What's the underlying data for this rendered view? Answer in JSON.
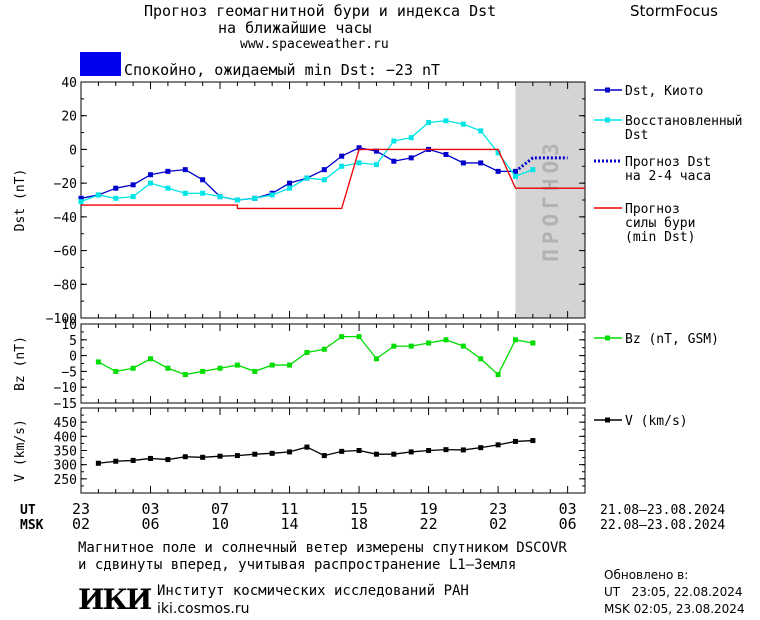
{
  "header": {
    "title_line1": "Прогноз геомагнитной бури и индекса Dst",
    "title_line2": "на ближайшие часы",
    "website": "www.spaceweather.ru",
    "brand": "StormFocus"
  },
  "status": {
    "text": "Спокойно, ожидаемый min Dst: −23 nT",
    "color": "#0000ee"
  },
  "forecast_label": "ПРОГНОЗ",
  "time_axis": {
    "ut_label": "UT",
    "msk_label": "MSK",
    "ut_ticks": [
      "23",
      "03",
      "07",
      "11",
      "15",
      "19",
      "23",
      "03"
    ],
    "msk_ticks": [
      "02",
      "06",
      "10",
      "14",
      "18",
      "22",
      "02",
      "06"
    ],
    "ut_range": "21.08–23.08.2024",
    "msk_range": "22.08–23.08.2024"
  },
  "footer": {
    "note_line1": "Магнитное поле и солнечный ветер измерены спутником DSCOVR",
    "note_line2": "и сдвинуты вперед, учитывая распространение L1–Земля",
    "institute": "Институт космических исследований РАН",
    "institute_url": "iki.cosmos.ru",
    "logo_text": "ИКИ",
    "updated_label": "Обновлено в:",
    "updated_ut": "UT   23:05, 22.08.2024",
    "updated_msk": "MSK 02:05, 23.08.2024"
  },
  "chart_data": [
    {
      "type": "line",
      "ylabel": "Dst (nT)",
      "ylim": [
        -100,
        40
      ],
      "yticks": [
        40,
        20,
        0,
        -20,
        -40,
        -60,
        -80,
        -100
      ],
      "xlim": [
        0,
        29
      ],
      "forecast_region": [
        25,
        29
      ],
      "series": [
        {
          "name": "Dst, Киото",
          "color": "#0000cc",
          "x": [
            0,
            1,
            2,
            3,
            4,
            5,
            6,
            7,
            8,
            9,
            10,
            11,
            12,
            13,
            14,
            15,
            16,
            17,
            18,
            19,
            20,
            21,
            22,
            23,
            24,
            25
          ],
          "y": [
            -29,
            -27,
            -23,
            -21,
            -15,
            -13,
            -12,
            -18,
            -28,
            -30,
            -29,
            -26,
            -20,
            -17,
            -12,
            -4,
            1,
            -1,
            -7,
            -5,
            0,
            -3,
            -8,
            -8,
            -13,
            -13
          ]
        },
        {
          "name": "Восстановленный Dst",
          "color": "#00e6e6",
          "x": [
            0,
            1,
            2,
            3,
            4,
            5,
            6,
            7,
            8,
            9,
            10,
            11,
            12,
            13,
            14,
            15,
            16,
            17,
            18,
            19,
            20,
            21,
            22,
            23,
            24,
            25,
            26
          ],
          "y": [
            -31,
            -27,
            -29,
            -28,
            -20,
            -23,
            -26,
            -26,
            -28,
            -30,
            -29,
            -27,
            -23,
            -17,
            -18,
            -10,
            -8,
            -9,
            5,
            7,
            16,
            17,
            15,
            11,
            -2,
            -16,
            -12
          ]
        },
        {
          "name": "Прогноз Dst на 2-4 часа",
          "color": "#0000cc",
          "dashed": true,
          "x": [
            25,
            26,
            27,
            28
          ],
          "y": [
            -13,
            -5,
            -5,
            -5
          ]
        },
        {
          "name": "Прогноз силы бури (min Dst)",
          "color": "#ee0000",
          "x": [
            0,
            9,
            9,
            15,
            16,
            16,
            24,
            25,
            29
          ],
          "y": [
            -33,
            -33,
            -35,
            -35,
            0,
            0,
            0,
            -23,
            -23
          ]
        }
      ]
    },
    {
      "type": "line",
      "ylabel": "Bz (nT)",
      "ylim": [
        -15,
        10
      ],
      "yticks": [
        10,
        5,
        0,
        -5,
        -10,
        -15
      ],
      "xlim": [
        0,
        29
      ],
      "series": [
        {
          "name": "Bz (nT, GSM)",
          "color": "#00dd00",
          "x": [
            1,
            2,
            3,
            4,
            5,
            6,
            7,
            8,
            9,
            10,
            11,
            12,
            13,
            14,
            15,
            16,
            17,
            18,
            19,
            20,
            21,
            22,
            23,
            24,
            25,
            26
          ],
          "y": [
            -2,
            -5,
            -4,
            -1,
            -4,
            -6,
            -5,
            -4,
            -3,
            -5,
            -3,
            -3,
            1,
            2,
            6,
            6,
            -1,
            3,
            3,
            4,
            5,
            3,
            -1,
            -6,
            5,
            4
          ]
        }
      ]
    },
    {
      "type": "line",
      "ylabel": "V (km/s)",
      "ylim": [
        200,
        500
      ],
      "yticks": [
        450,
        400,
        350,
        300,
        250
      ],
      "xlim": [
        0,
        29
      ],
      "series": [
        {
          "name": "V (km/s)",
          "color": "#000000",
          "x": [
            1,
            2,
            3,
            4,
            5,
            6,
            7,
            8,
            9,
            10,
            11,
            12,
            13,
            14,
            15,
            16,
            17,
            18,
            19,
            20,
            21,
            22,
            23,
            24,
            25,
            26
          ],
          "y": [
            305,
            312,
            315,
            322,
            318,
            328,
            326,
            330,
            332,
            337,
            340,
            345,
            362,
            332,
            347,
            350,
            337,
            337,
            345,
            350,
            353,
            352,
            360,
            370,
            382,
            385
          ]
        }
      ]
    }
  ]
}
